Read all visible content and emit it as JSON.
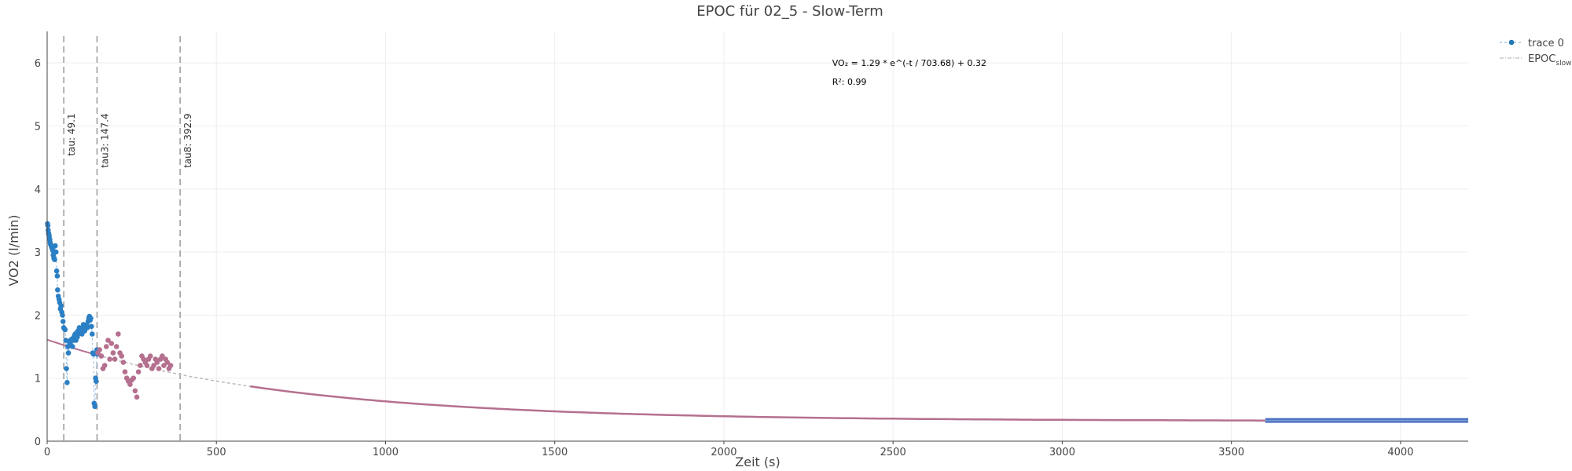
{
  "chart_data": {
    "type": "scatter",
    "title": "EPOC für 02_5 - Slow-Term",
    "xlabel": "Zeit (s)",
    "ylabel": "VO2 (l/min)",
    "xlim": [
      0,
      4200
    ],
    "ylim": [
      0,
      6.5
    ],
    "xticks": [
      0,
      500,
      1000,
      1500,
      2000,
      2500,
      3000,
      3500,
      4000
    ],
    "yticks": [
      0,
      1,
      2,
      3,
      4,
      5,
      6
    ],
    "grid": true,
    "legend_position": "top-right",
    "legend": [
      {
        "label": "trace 0",
        "sub": "",
        "color": "#1f77b4",
        "style": "markers-dashed"
      },
      {
        "label": "EPOC",
        "sub": "slow",
        "color": "#bbbbbb",
        "style": "dash-dot"
      }
    ],
    "vertical_lines": [
      {
        "x": 49.1,
        "label": "tau: 49.1"
      },
      {
        "x": 147.4,
        "label": "tau3: 147.4"
      },
      {
        "x": 392.9,
        "label": "tau8: 392.9"
      }
    ],
    "annotations": [
      {
        "text": "VO₂ = 1.29 * e^(-t / 703.68) + 0.32",
        "x": 2320,
        "y": 6.0
      },
      {
        "text": "R²: 0.99",
        "x": 2320,
        "y": 5.7
      }
    ],
    "fit": {
      "a": 1.29,
      "tau": 703.68,
      "c": 0.32
    },
    "colors": {
      "trace_blue": "#2b7fc4",
      "trace_pink": "#b5708f",
      "fit_line": "#b5708f",
      "dotted_line": "#bbbbbb",
      "baseline": "#4a6fc0"
    },
    "series": [
      {
        "name": "trace 0",
        "color": "#2b7fc4",
        "x": [
          1,
          2,
          3,
          4,
          5,
          6,
          8,
          9,
          10,
          12,
          13,
          15,
          17,
          18,
          20,
          22,
          24,
          26,
          28,
          30,
          31,
          33,
          35,
          37,
          39,
          41,
          43,
          45,
          47,
          49,
          51,
          53,
          55,
          57,
          59,
          61,
          63,
          65,
          67,
          69,
          71,
          73,
          75,
          77,
          79,
          81,
          83,
          85,
          87,
          89,
          91,
          93,
          95,
          97,
          99,
          101,
          103,
          105,
          107,
          109,
          111,
          113,
          115,
          117,
          119,
          121,
          123,
          125,
          127,
          129,
          131,
          133,
          135,
          137,
          139,
          141,
          143,
          145,
          147,
          148
        ],
        "y": [
          3.45,
          3.42,
          3.35,
          3.3,
          3.28,
          3.25,
          3.2,
          3.15,
          3.12,
          3.1,
          3.08,
          3.05,
          3.02,
          2.95,
          2.9,
          2.88,
          3.1,
          3.0,
          2.7,
          2.62,
          2.4,
          2.3,
          2.25,
          2.2,
          2.1,
          2.15,
          2.05,
          2.0,
          1.9,
          1.8,
          1.78,
          1.77,
          1.6,
          1.15,
          0.93,
          1.5,
          1.4,
          1.58,
          1.55,
          1.6,
          1.52,
          1.62,
          1.5,
          1.6,
          1.65,
          1.68,
          1.7,
          1.6,
          1.72,
          1.65,
          1.75,
          1.7,
          1.8,
          1.75,
          1.75,
          1.78,
          1.7,
          1.8,
          1.85,
          1.75,
          1.75,
          1.8,
          1.8,
          1.85,
          1.8,
          1.9,
          1.95,
          1.98,
          1.92,
          1.95,
          1.82,
          1.7,
          1.4,
          1.38,
          0.6,
          0.55,
          1.0,
          0.95,
          1.45,
          1.38
        ]
      },
      {
        "name": "",
        "color": "#b5708f",
        "x": [
          150,
          155,
          160,
          165,
          170,
          175,
          180,
          185,
          190,
          195,
          200,
          205,
          210,
          215,
          220,
          225,
          230,
          235,
          240,
          245,
          250,
          255,
          260,
          265,
          270,
          275,
          280,
          285,
          290,
          295,
          300,
          305,
          310,
          315,
          320,
          325,
          330,
          335,
          340,
          345,
          350,
          355,
          360,
          365
        ],
        "y": [
          1.4,
          1.45,
          1.35,
          1.15,
          1.2,
          1.5,
          1.6,
          1.3,
          1.55,
          1.4,
          1.3,
          1.5,
          1.7,
          1.4,
          1.35,
          1.25,
          1.1,
          1.0,
          0.95,
          0.9,
          0.97,
          1.0,
          0.8,
          0.7,
          1.1,
          1.2,
          1.35,
          1.3,
          1.25,
          1.2,
          1.3,
          1.35,
          1.15,
          1.2,
          1.3,
          1.25,
          1.15,
          1.3,
          1.35,
          1.2,
          1.3,
          1.25,
          1.15,
          1.2
        ]
      }
    ]
  }
}
